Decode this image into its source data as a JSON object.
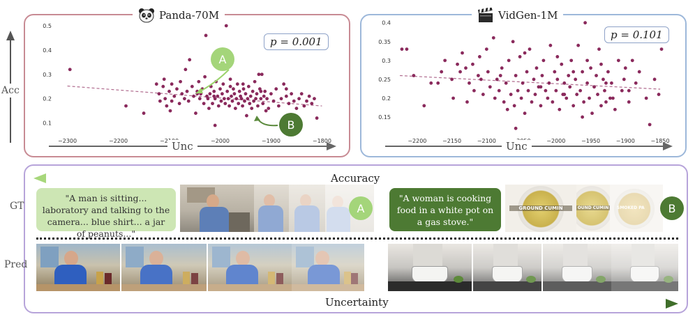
{
  "left_panel": {
    "title": "Panda-70M",
    "icon": "panda-icon",
    "pvalue": "p = 0.001",
    "y_axis_label": "Acc",
    "x_axis_label": "Unc",
    "badge_a": "A",
    "badge_b": "B"
  },
  "right_panel": {
    "title": "VidGen-1M",
    "icon": "clapperboard-icon",
    "pvalue": "p = 0.101",
    "x_axis_label": "Unc"
  },
  "bottom": {
    "accuracy_label": "Accuracy",
    "uncertainty_label": "Uncertainty",
    "gt_label": "GT",
    "pred_label": "Pred",
    "caption_a": "\"A man is sitting... laboratory and talking to the camera... blue shirt... a jar of peanuts...\"",
    "caption_b": "\"A woman is cooking food in a white pot on a gas stove.\"",
    "badge_a": "A",
    "badge_b": "B",
    "frame_text_b1": "GROUND CUMIN",
    "frame_text_b2": "OUND CUMIN",
    "frame_text_b3": "SMOKED PA"
  },
  "chart_data": [
    {
      "type": "scatter",
      "title": "Panda-70M",
      "xlabel": "Unc",
      "ylabel": "Acc",
      "xlim": [
        -2320,
        -1780
      ],
      "ylim": [
        0.07,
        0.52
      ],
      "xticks": [
        -2300,
        -2200,
        -2100,
        -2000,
        -1900,
        -1800
      ],
      "yticks": [
        0.1,
        0.2,
        0.3,
        0.4,
        0.5
      ],
      "trend": {
        "x": [
          -2300,
          -1800
        ],
        "y": [
          0.252,
          0.17
        ]
      },
      "annotation": "p = 0.001",
      "point_color": "#8a2a5c",
      "points": [
        [
          -2295,
          0.32
        ],
        [
          -2185,
          0.17
        ],
        [
          -2125,
          0.26
        ],
        [
          -2120,
          0.22
        ],
        [
          -2118,
          0.19
        ],
        [
          -2112,
          0.25
        ],
        [
          -2108,
          0.2
        ],
        [
          -2105,
          0.17
        ],
        [
          -2100,
          0.23
        ],
        [
          -2098,
          0.15
        ],
        [
          -2095,
          0.26
        ],
        [
          -2090,
          0.21
        ],
        [
          -2085,
          0.24
        ],
        [
          -2080,
          0.18
        ],
        [
          -2078,
          0.27
        ],
        [
          -2075,
          0.22
        ],
        [
          -2070,
          0.2
        ],
        [
          -2068,
          0.32
        ],
        [
          -2062,
          0.19
        ],
        [
          -2060,
          0.36
        ],
        [
          -2055,
          0.25
        ],
        [
          -2052,
          0.21
        ],
        [
          -2048,
          0.14
        ],
        [
          -2045,
          0.23
        ],
        [
          -2042,
          0.27
        ],
        [
          -2040,
          0.2
        ],
        [
          -2038,
          0.22
        ],
        [
          -2035,
          0.24
        ],
        [
          -2032,
          0.18
        ],
        [
          -2030,
          0.29
        ],
        [
          -2028,
          0.46
        ],
        [
          -2026,
          0.21
        ],
        [
          -2024,
          0.2
        ],
        [
          -2022,
          0.16
        ],
        [
          -2020,
          0.22
        ],
        [
          -2018,
          0.25
        ],
        [
          -2015,
          0.18
        ],
        [
          -2012,
          0.23
        ],
        [
          -2010,
          0.2
        ],
        [
          -2008,
          0.27
        ],
        [
          -2005,
          0.21
        ],
        [
          -2003,
          0.17
        ],
        [
          -2000,
          0.24
        ],
        [
          -1998,
          0.19
        ],
        [
          -1996,
          0.22
        ],
        [
          -1994,
          0.26
        ],
        [
          -1992,
          0.2
        ],
        [
          -1990,
          0.18
        ],
        [
          -1988,
          0.5
        ],
        [
          -1986,
          0.23
        ],
        [
          -1984,
          0.2
        ],
        [
          -1982,
          0.17
        ],
        [
          -1980,
          0.25
        ],
        [
          -1978,
          0.21
        ],
        [
          -1976,
          0.19
        ],
        [
          -1974,
          0.24
        ],
        [
          -1972,
          0.22
        ],
        [
          -1970,
          0.16
        ],
        [
          -1968,
          0.2
        ],
        [
          -1966,
          0.26
        ],
        [
          -1964,
          0.18
        ],
        [
          -1962,
          0.23
        ],
        [
          -1960,
          0.21
        ],
        [
          -1958,
          0.2
        ],
        [
          -1956,
          0.17
        ],
        [
          -1954,
          0.24
        ],
        [
          -1952,
          0.19
        ],
        [
          -1950,
          0.22
        ],
        [
          -1948,
          0.13
        ],
        [
          -1946,
          0.2
        ],
        [
          -1944,
          0.25
        ],
        [
          -1942,
          0.18
        ],
        [
          -1940,
          0.21
        ],
        [
          -1938,
          0.16
        ],
        [
          -1936,
          0.23
        ],
        [
          -1934,
          0.19
        ],
        [
          -1932,
          0.27
        ],
        [
          -1930,
          0.2
        ],
        [
          -1928,
          0.22
        ],
        [
          -1926,
          0.17
        ],
        [
          -1924,
          0.3
        ],
        [
          -1922,
          0.24
        ],
        [
          -1920,
          0.2
        ],
        [
          -1918,
          0.3
        ],
        [
          -1916,
          0.18
        ],
        [
          -1914,
          0.21
        ],
        [
          -1912,
          0.23
        ],
        [
          -1910,
          0.15
        ],
        [
          -1908,
          0.2
        ],
        [
          -1905,
          0.16
        ],
        [
          -1900,
          0.22
        ],
        [
          -1895,
          0.19
        ],
        [
          -1890,
          0.24
        ],
        [
          -1885,
          0.17
        ],
        [
          -1880,
          0.2
        ],
        [
          -1875,
          0.26
        ],
        [
          -1870,
          0.21
        ],
        [
          -1865,
          0.18
        ],
        [
          -1860,
          0.22
        ],
        [
          -1855,
          0.19
        ],
        [
          -1850,
          0.16
        ],
        [
          -1845,
          0.2
        ],
        [
          -1840,
          0.22
        ],
        [
          -1835,
          0.17
        ],
        [
          -1830,
          0.19
        ],
        [
          -1825,
          0.21
        ],
        [
          -1820,
          0.18
        ],
        [
          -1815,
          0.2
        ],
        [
          -1810,
          0.12
        ],
        [
          -2010,
          0.09
        ],
        [
          -2150,
          0.14
        ],
        [
          -2110,
          0.28
        ],
        [
          -2065,
          0.23
        ],
        [
          -2012,
          0.21
        ],
        [
          -1980,
          0.28
        ],
        [
          -1955,
          0.26
        ],
        [
          -1920,
          0.23
        ],
        [
          -1870,
          0.24
        ],
        [
          -2095,
          0.19
        ],
        [
          -2045,
          0.22
        ]
      ]
    },
    {
      "type": "scatter",
      "title": "VidGen-1M",
      "xlabel": "Unc",
      "xlim": [
        -2230,
        -1840
      ],
      "ylim": [
        0.115,
        0.405
      ],
      "xticks": [
        -2200,
        -2150,
        -2100,
        -2050,
        -2000,
        -1950,
        -1900,
        -1850
      ],
      "yticks": [
        0.15,
        0.2,
        0.25,
        0.3,
        0.35,
        0.4
      ],
      "trend": {
        "x": [
          -2225,
          -1850
        ],
        "y": [
          0.26,
          0.224
        ]
      },
      "annotation": "p = 0.101",
      "point_color": "#8a2a5c",
      "points": [
        [
          -2222,
          0.33
        ],
        [
          -2215,
          0.33
        ],
        [
          -2205,
          0.26
        ],
        [
          -2190,
          0.18
        ],
        [
          -2170,
          0.24
        ],
        [
          -2165,
          0.27
        ],
        [
          -2160,
          0.3
        ],
        [
          -2150,
          0.25
        ],
        [
          -2148,
          0.2
        ],
        [
          -2142,
          0.29
        ],
        [
          -2138,
          0.27
        ],
        [
          -2135,
          0.32
        ],
        [
          -2130,
          0.28
        ],
        [
          -2125,
          0.24
        ],
        [
          -2120,
          0.29
        ],
        [
          -2118,
          0.22
        ],
        [
          -2112,
          0.26
        ],
        [
          -2108,
          0.25
        ],
        [
          -2105,
          0.21
        ],
        [
          -2100,
          0.33
        ],
        [
          -2098,
          0.27
        ],
        [
          -2095,
          0.23
        ],
        [
          -2090,
          0.36
        ],
        [
          -2088,
          0.2
        ],
        [
          -2085,
          0.25
        ],
        [
          -2082,
          0.22
        ],
        [
          -2078,
          0.28
        ],
        [
          -2075,
          0.19
        ],
        [
          -2072,
          0.24
        ],
        [
          -2070,
          0.17
        ],
        [
          -2068,
          0.3
        ],
        [
          -2065,
          0.21
        ],
        [
          -2062,
          0.35
        ],
        [
          -2060,
          0.18
        ],
        [
          -2058,
          0.26
        ],
        [
          -2055,
          0.22
        ],
        [
          -2052,
          0.31
        ],
        [
          -2050,
          0.2
        ],
        [
          -2048,
          0.24
        ],
        [
          -2045,
          0.16
        ],
        [
          -2042,
          0.27
        ],
        [
          -2040,
          0.22
        ],
        [
          -2038,
          0.33
        ],
        [
          -2035,
          0.19
        ],
        [
          -2032,
          0.25
        ],
        [
          -2030,
          0.21
        ],
        [
          -2028,
          0.28
        ],
        [
          -2025,
          0.23
        ],
        [
          -2022,
          0.18
        ],
        [
          -2020,
          0.26
        ],
        [
          -2018,
          0.3
        ],
        [
          -2015,
          0.22
        ],
        [
          -2012,
          0.2
        ],
        [
          -2010,
          0.24
        ],
        [
          -2008,
          0.34
        ],
        [
          -2005,
          0.19
        ],
        [
          -2002,
          0.27
        ],
        [
          -2000,
          0.22
        ],
        [
          -1998,
          0.25
        ],
        [
          -1995,
          0.17
        ],
        [
          -1992,
          0.29
        ],
        [
          -1990,
          0.21
        ],
        [
          -1988,
          0.24
        ],
        [
          -1985,
          0.2
        ],
        [
          -1982,
          0.26
        ],
        [
          -1980,
          0.23
        ],
        [
          -1978,
          0.3
        ],
        [
          -1975,
          0.18
        ],
        [
          -1972,
          0.25
        ],
        [
          -1970,
          0.21
        ],
        [
          -1968,
          0.34
        ],
        [
          -1965,
          0.22
        ],
        [
          -1962,
          0.27
        ],
        [
          -1960,
          0.19
        ],
        [
          -1958,
          0.4
        ],
        [
          -1955,
          0.24
        ],
        [
          -1952,
          0.2
        ],
        [
          -1950,
          0.28
        ],
        [
          -1948,
          0.16
        ],
        [
          -1945,
          0.23
        ],
        [
          -1942,
          0.26
        ],
        [
          -1940,
          0.21
        ],
        [
          -1938,
          0.33
        ],
        [
          -1935,
          0.18
        ],
        [
          -1932,
          0.25
        ],
        [
          -1930,
          0.22
        ],
        [
          -1928,
          0.19
        ],
        [
          -1925,
          0.27
        ],
        [
          -1922,
          0.2
        ],
        [
          -1920,
          0.24
        ],
        [
          -1915,
          0.17
        ],
        [
          -1910,
          0.3
        ],
        [
          -1905,
          0.22
        ],
        [
          -1900,
          0.28
        ],
        [
          -1895,
          0.19
        ],
        [
          -1890,
          0.3
        ],
        [
          -1885,
          0.24
        ],
        [
          -1880,
          0.27
        ],
        [
          -1870,
          0.2
        ],
        [
          -1865,
          0.13
        ],
        [
          -1858,
          0.25
        ],
        [
          -1852,
          0.21
        ],
        [
          -1848,
          0.33
        ],
        [
          -2180,
          0.24
        ],
        [
          -2128,
          0.19
        ],
        [
          -2058,
          0.12
        ],
        [
          -2045,
          0.32
        ],
        [
          -1998,
          0.31
        ],
        [
          -1975,
          0.27
        ],
        [
          -1962,
          0.15
        ],
        [
          -1935,
          0.29
        ],
        [
          -1918,
          0.2
        ],
        [
          -1902,
          0.25
        ],
        [
          -2110,
          0.31
        ],
        [
          -2080,
          0.26
        ],
        [
          -2022,
          0.23
        ],
        [
          -1988,
          0.21
        ],
        [
          -1955,
          0.3
        ],
        [
          -1928,
          0.24
        ],
        [
          -1895,
          0.22
        ]
      ]
    }
  ]
}
